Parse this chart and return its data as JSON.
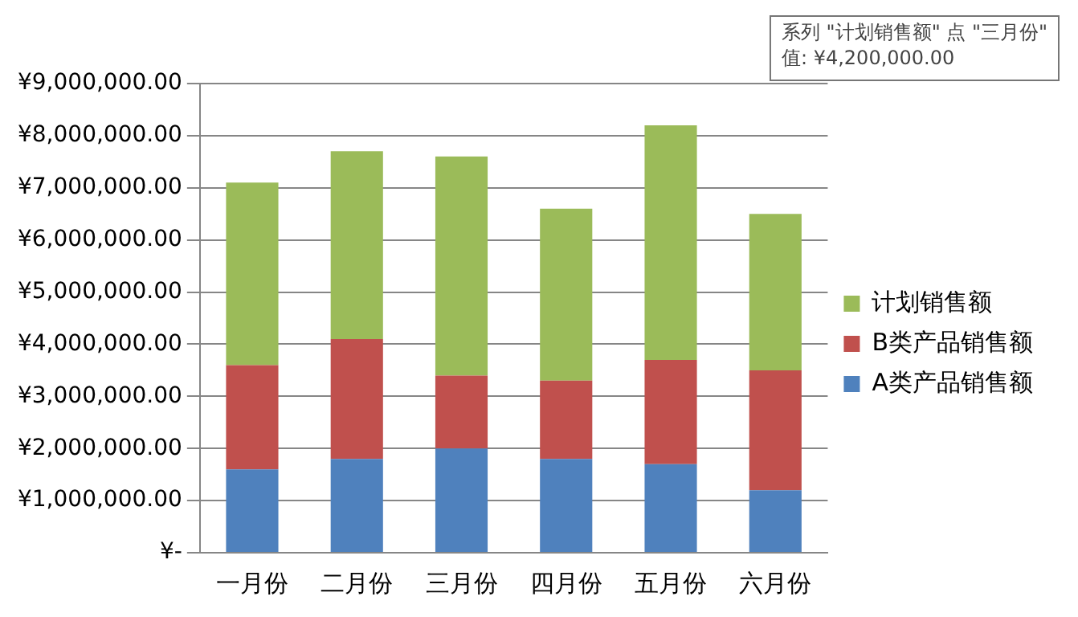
{
  "chart_data": {
    "type": "bar",
    "stacked": true,
    "categories": [
      "一月份",
      "二月份",
      "三月份",
      "四月份",
      "五月份",
      "六月份"
    ],
    "series": [
      {
        "name": "A类产品销售额",
        "color": "#4f81bd",
        "values": [
          1600000,
          1800000,
          2000000,
          1800000,
          1700000,
          1200000
        ]
      },
      {
        "name": "B类产品销售额",
        "color": "#c0504d",
        "values": [
          2000000,
          2300000,
          1400000,
          1500000,
          2000000,
          2300000
        ]
      },
      {
        "name": "计划销售额",
        "color": "#9bbb59",
        "values": [
          3500000,
          3600000,
          4200000,
          3300000,
          4500000,
          3000000
        ]
      }
    ],
    "ylim": [
      0,
      9000000
    ],
    "yticks": [
      {
        "value": 0,
        "label": "¥-"
      },
      {
        "value": 1000000,
        "label": "¥1,000,000.00"
      },
      {
        "value": 2000000,
        "label": "¥2,000,000.00"
      },
      {
        "value": 3000000,
        "label": "¥3,000,000.00"
      },
      {
        "value": 4000000,
        "label": "¥4,000,000.00"
      },
      {
        "value": 5000000,
        "label": "¥5,000,000.00"
      },
      {
        "value": 6000000,
        "label": "¥6,000,000.00"
      },
      {
        "value": 7000000,
        "label": "¥7,000,000.00"
      },
      {
        "value": 8000000,
        "label": "¥8,000,000.00"
      },
      {
        "value": 9000000,
        "label": "¥9,000,000.00"
      }
    ],
    "grid": "y",
    "legend": "right",
    "annotations": [
      "系列 \"计划销售额\" 点 \"三月份\"\n值: ¥4,200,000.00"
    ]
  }
}
